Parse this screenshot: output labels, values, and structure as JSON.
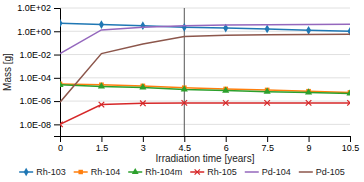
{
  "chart_data": {
    "type": "line",
    "xlabel": "Irradiation time [years]",
    "ylabel": "Mass [g]",
    "x": [
      0,
      1.5,
      3,
      4.5,
      6,
      7.5,
      9,
      10.5
    ],
    "series": [
      {
        "name": "Rh-103",
        "marker": "diamond",
        "values": [
          5.0,
          3.8,
          3.0,
          2.2,
          1.9,
          1.6,
          1.2,
          1.0
        ]
      },
      {
        "name": "Rh-104",
        "marker": "square",
        "values": [
          3e-05,
          2.5e-05,
          2e-05,
          1.4e-05,
          1.1e-05,
          9e-06,
          7e-06,
          5.5e-06
        ]
      },
      {
        "name": "Rh-104m",
        "marker": "triangle",
        "values": [
          2.5e-05,
          1.8e-05,
          1.5e-05,
          1e-05,
          8e-06,
          6.5e-06,
          5.5e-06,
          4.5e-06
        ]
      },
      {
        "name": "Rh-105",
        "marker": "x",
        "values": [
          1e-08,
          5e-07,
          6.5e-07,
          7e-07,
          7e-07,
          7e-07,
          7e-07,
          7e-07
        ]
      },
      {
        "name": "Pd-104",
        "values": [
          0.012,
          1.3,
          2.2,
          3.0,
          3.4,
          3.7,
          3.85,
          4.0
        ]
      },
      {
        "name": "Pd-105",
        "values": [
          8e-07,
          0.012,
          0.08,
          0.35,
          0.45,
          0.5,
          0.52,
          0.55
        ]
      }
    ],
    "xlim": [
      0,
      10.5
    ],
    "xticks": [
      0,
      1.5,
      3,
      4.5,
      6,
      7.5,
      9,
      10.5
    ],
    "ylim": [
      1e-09,
      100
    ],
    "yticks": [
      {
        "value": 100,
        "label": "1.0E+02"
      },
      {
        "value": 1,
        "label": "1.0E+00"
      },
      {
        "value": 0.01,
        "label": "1.0E-02"
      },
      {
        "value": 0.0001,
        "label": "1.0E-04"
      },
      {
        "value": 1e-06,
        "label": "1.0E-06"
      },
      {
        "value": 1e-08,
        "label": "1.0E-08"
      }
    ],
    "log": "y",
    "grid": true,
    "legend": "bottom",
    "annotations": [
      {
        "type": "vline",
        "x": 4.5,
        "color": "#555555"
      }
    ]
  }
}
